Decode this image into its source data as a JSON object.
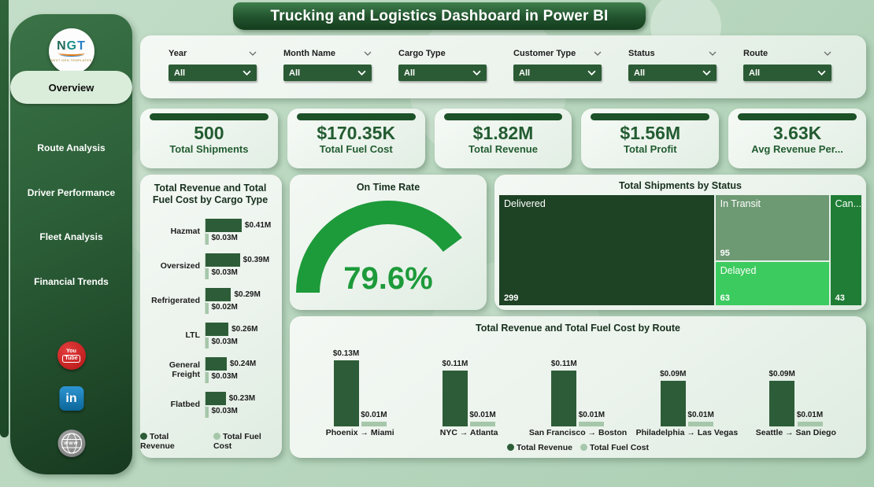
{
  "header": {
    "title": "Trucking and Logistics Dashboard in Power BI"
  },
  "logo": {
    "letters": [
      "N",
      "G",
      "T"
    ],
    "subtext": "NEXT GEN TEMPLATES"
  },
  "sidebar": {
    "items": [
      {
        "label": "Overview",
        "active": true
      },
      {
        "label": "Route Analysis",
        "active": false
      },
      {
        "label": "Driver Performance",
        "active": false
      },
      {
        "label": "Fleet Analysis",
        "active": false
      },
      {
        "label": "Financial Trends",
        "active": false
      }
    ]
  },
  "social": {
    "youtube_line1": "You",
    "youtube_line2": "Tube",
    "linkedin": "in",
    "website": "www"
  },
  "filters": [
    {
      "label": "Year",
      "value": "All",
      "header_chevron": true
    },
    {
      "label": "Month Name",
      "value": "All",
      "header_chevron": true
    },
    {
      "label": "Cargo Type",
      "value": "All",
      "header_chevron": false
    },
    {
      "label": "Customer Type",
      "value": "All",
      "header_chevron": true
    },
    {
      "label": "Status",
      "value": "All",
      "header_chevron": true
    },
    {
      "label": "Route",
      "value": "All",
      "header_chevron": true
    }
  ],
  "kpis": [
    {
      "value": "500",
      "label": "Total Shipments"
    },
    {
      "value": "$170.35K",
      "label": "Total Fuel Cost"
    },
    {
      "value": "$1.82M",
      "label": "Total Revenue"
    },
    {
      "value": "$1.56M",
      "label": "Total Profit"
    },
    {
      "value": "3.63K",
      "label": "Avg Revenue Per..."
    }
  ],
  "colors": {
    "page_bg": "#b9d7bf",
    "dark_green": "#1d4f2a",
    "dropdown_green": "#2b5b35",
    "revenue_bar": "#2d5d38",
    "fuel_bar": "#a6c7aa",
    "gauge_green": "#1d9a3a",
    "treemap": [
      "#1d4224",
      "#6d9973",
      "#3ccb5e",
      "#1f7d35"
    ],
    "youtube_red": "#c21f1f",
    "linkedin_blue": "#1177b0"
  },
  "chart_data": [
    {
      "type": "bar",
      "orientation": "horizontal",
      "title": "Total Revenue and Total Fuel Cost by Cargo Type",
      "categories": [
        "Hazmat",
        "Oversized",
        "Refrigerated",
        "LTL",
        "General Freight",
        "Flatbed"
      ],
      "series": [
        {
          "name": "Total Revenue",
          "values": [
            0.41,
            0.39,
            0.29,
            0.26,
            0.24,
            0.23
          ],
          "labels": [
            "$0.41M",
            "$0.39M",
            "$0.29M",
            "$0.26M",
            "$0.24M",
            "$0.23M"
          ]
        },
        {
          "name": "Total Fuel Cost",
          "values": [
            0.03,
            0.03,
            0.02,
            0.03,
            0.03,
            0.03
          ],
          "labels": [
            "$0.03M",
            "$0.03M",
            "$0.02M",
            "$0.03M",
            "$0.03M",
            "$0.03M"
          ]
        }
      ],
      "unit": "$M",
      "legend": [
        "Total Revenue",
        "Total Fuel Cost"
      ],
      "legend_position": "bottom"
    },
    {
      "type": "gauge",
      "title": "On Time Rate",
      "value": 79.6,
      "display": "79.6%",
      "min": 0,
      "max": 100
    },
    {
      "type": "treemap",
      "title": "Total Shipments by Status",
      "items": [
        {
          "label": "Delivered",
          "value": 299
        },
        {
          "label": "In Transit",
          "value": 95
        },
        {
          "label": "Delayed",
          "value": 63
        },
        {
          "label": "Can...",
          "value": 43
        }
      ]
    },
    {
      "type": "bar",
      "orientation": "vertical",
      "title": "Total Revenue and Total Fuel Cost by Route",
      "categories": [
        "Phoenix → Miami",
        "NYC → Atlanta",
        "San Francisco → Boston",
        "Philadelphia → Las Vegas",
        "Seattle → San Diego"
      ],
      "series": [
        {
          "name": "Total Revenue",
          "values": [
            0.13,
            0.11,
            0.11,
            0.09,
            0.09
          ],
          "labels": [
            "$0.13M",
            "$0.11M",
            "$0.11M",
            "$0.09M",
            "$0.09M"
          ]
        },
        {
          "name": "Total Fuel Cost",
          "values": [
            0.01,
            0.01,
            0.01,
            0.01,
            0.01
          ],
          "labels": [
            "$0.01M",
            "$0.01M",
            "$0.01M",
            "$0.01M",
            "$0.01M"
          ]
        }
      ],
      "unit": "$M",
      "legend": [
        "Total Revenue",
        "Total Fuel Cost"
      ],
      "legend_position": "bottom"
    }
  ]
}
